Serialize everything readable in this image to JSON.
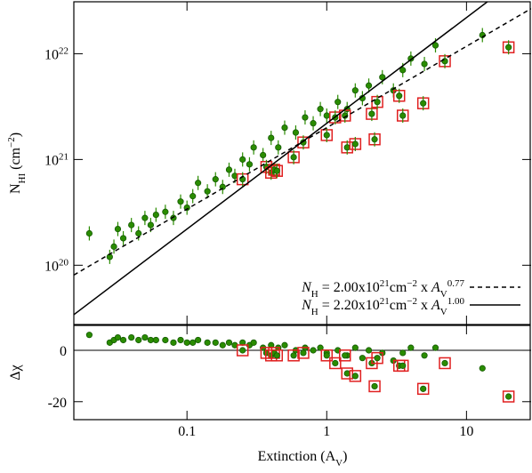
{
  "chart_data": [
    {
      "type": "scatter",
      "xscale": "log",
      "yscale": "log",
      "xlim": [
        0.0155,
        29
      ],
      "ylim": [
        2.75e+19,
        3.1e+22
      ],
      "xticks": [
        0.1,
        1,
        10
      ],
      "yticks": [
        {
          "value": 1e+20,
          "label": "10^20"
        },
        {
          "value": 1e+21,
          "label": "10^21"
        },
        {
          "value": 1e+22,
          "label": "10^22"
        }
      ],
      "ylabel": [
        {
          "text": "N",
          "style": ""
        },
        {
          "text": "HI",
          "style": "sub"
        },
        {
          "text": " (cm",
          "style": ""
        },
        {
          "text": "−2",
          "style": "sup"
        },
        {
          "text": ")",
          "style": ""
        }
      ],
      "series": [
        {
          "kind": "points",
          "color": "#2a8c00",
          "x": [
            0.02,
            0.028,
            0.03,
            0.032,
            0.035,
            0.04,
            0.045,
            0.05,
            0.055,
            0.06,
            0.07,
            0.08,
            0.09,
            0.1,
            0.11,
            0.12,
            0.14,
            0.16,
            0.18,
            0.2,
            0.22,
            0.25,
            0.28,
            0.3,
            0.35,
            0.4,
            0.45,
            0.5,
            0.6,
            0.7,
            0.8,
            0.9,
            1.0,
            1.2,
            1.4,
            1.6,
            1.8,
            2.0,
            2.5,
            3.0,
            3.5,
            4.0,
            5.0,
            6.0,
            13
          ],
          "values": [
            2e+20,
            1.2e+20,
            1.5e+20,
            2.2e+20,
            1.8e+20,
            2.4e+20,
            2e+20,
            2.8e+20,
            2.4e+20,
            3e+20,
            3.2e+20,
            2.8e+20,
            4e+20,
            3.5e+20,
            4.5e+20,
            6e+20,
            5e+20,
            6.5e+20,
            5.5e+20,
            8e+20,
            7e+20,
            1e+21,
            9e+20,
            1.3e+21,
            1.1e+21,
            1.6e+21,
            1.3e+21,
            2e+21,
            1.8e+21,
            2.5e+21,
            2.2e+21,
            3e+21,
            2.6e+21,
            3.5e+21,
            3e+21,
            4.5e+21,
            3.8e+21,
            5e+21,
            6e+21,
            4.5e+21,
            7e+21,
            9e+21,
            8e+21,
            1.2e+22,
            1.5e+22
          ]
        },
        {
          "kind": "boxed",
          "color": "#2a8c00",
          "box_color": "#e02020",
          "x": [
            0.25,
            0.37,
            0.4,
            0.42,
            0.44,
            0.58,
            0.68,
            1.0,
            1.15,
            1.35,
            1.4,
            1.6,
            2.1,
            2.2,
            2.3,
            3.3,
            3.5,
            4.9,
            7,
            20
          ],
          "values": [
            6.5e+20,
            8.5e+20,
            7.5e+20,
            8e+20,
            7.8e+20,
            1.05e+21,
            1.45e+21,
            1.7e+21,
            2.5e+21,
            2.6e+21,
            1.3e+21,
            1.4e+21,
            2.7e+21,
            1.55e+21,
            3.5e+21,
            4e+21,
            2.6e+21,
            3.4e+21,
            8.5e+21,
            1.15e+22
          ]
        },
        {
          "kind": "line",
          "dash": true,
          "color": "#000000",
          "name": [
            {
              "text": "N",
              "style": "italic"
            },
            {
              "text": "H",
              "style": "sub"
            },
            {
              "text": " =  2.00x10",
              "style": ""
            },
            {
              "text": "21",
              "style": "sup"
            },
            {
              "text": "cm",
              "style": ""
            },
            {
              "text": "−2",
              "style": "sup"
            },
            {
              "text": " x ",
              "style": ""
            },
            {
              "text": "A",
              "style": "italic"
            },
            {
              "text": "V",
              "style": "sub"
            },
            {
              "text": "0.77",
              "style": "sup"
            }
          ],
          "x": [
            0.0155,
            29
          ],
          "values": [
            8.08e+19,
            2.67e+22
          ]
        },
        {
          "kind": "line",
          "dash": false,
          "color": "#000000",
          "name": [
            {
              "text": "N",
              "style": "italic"
            },
            {
              "text": "H",
              "style": "sub"
            },
            {
              "text": " =  2.20x10",
              "style": ""
            },
            {
              "text": "21",
              "style": "sup"
            },
            {
              "text": "cm",
              "style": ""
            },
            {
              "text": "−2",
              "style": "sup"
            },
            {
              "text": " x ",
              "style": ""
            },
            {
              "text": "A",
              "style": "italic"
            },
            {
              "text": "V",
              "style": "sub"
            },
            {
              "text": "1.00",
              "style": "sup"
            }
          ],
          "x": [
            0.0155,
            14.1
          ],
          "values": [
            3.41e+19,
            3.1e+22
          ]
        }
      ],
      "legend": "lower right"
    },
    {
      "type": "scatter",
      "xscale": "log",
      "xlim": [
        0.0155,
        29
      ],
      "ylim": [
        -27,
        9.7
      ],
      "xticks": [
        0.1,
        1,
        10
      ],
      "yticks": [
        0,
        -20
      ],
      "reference_line": 0,
      "xlabel": [
        {
          "text": "Extinction (A",
          "style": ""
        },
        {
          "text": "V",
          "style": "sub"
        },
        {
          "text": ")",
          "style": ""
        }
      ],
      "ylabel": [
        {
          "text": "Δχ",
          "style": ""
        }
      ],
      "series": [
        {
          "kind": "points",
          "color": "#2a8c00",
          "x": [
            0.02,
            0.028,
            0.03,
            0.032,
            0.035,
            0.04,
            0.045,
            0.05,
            0.055,
            0.06,
            0.07,
            0.08,
            0.09,
            0.1,
            0.11,
            0.12,
            0.14,
            0.16,
            0.18,
            0.2,
            0.22,
            0.25,
            0.28,
            0.3,
            0.35,
            0.4,
            0.45,
            0.5,
            0.6,
            0.7,
            0.8,
            0.9,
            1.0,
            1.2,
            1.4,
            1.6,
            1.8,
            2.0,
            2.5,
            3.0,
            3.5,
            4.0,
            5.0,
            6.0,
            13
          ],
          "values": [
            6,
            3,
            4,
            5,
            4,
            5,
            4,
            5,
            4,
            4,
            4,
            3,
            4,
            3,
            3,
            4,
            3,
            3,
            2,
            3,
            2,
            3,
            2,
            3,
            1,
            2,
            1,
            2,
            0,
            1,
            0,
            1,
            -1,
            0,
            -2,
            1,
            -3,
            0,
            -1,
            -4,
            -1,
            1,
            -2,
            1,
            -7
          ]
        },
        {
          "kind": "boxed",
          "color": "#2a8c00",
          "box_color": "#e02020",
          "x": [
            0.25,
            0.37,
            0.4,
            0.42,
            0.44,
            0.58,
            0.68,
            1.0,
            1.15,
            1.35,
            1.4,
            1.6,
            2.1,
            2.2,
            2.3,
            3.3,
            3.5,
            4.9,
            7,
            20
          ],
          "values": [
            0,
            -1,
            -2,
            -1,
            -2,
            -2,
            -1,
            -2,
            -5,
            -2,
            -9,
            -10,
            -5,
            -14,
            -3,
            -6,
            -6,
            -15,
            -5,
            -18
          ]
        }
      ]
    }
  ]
}
